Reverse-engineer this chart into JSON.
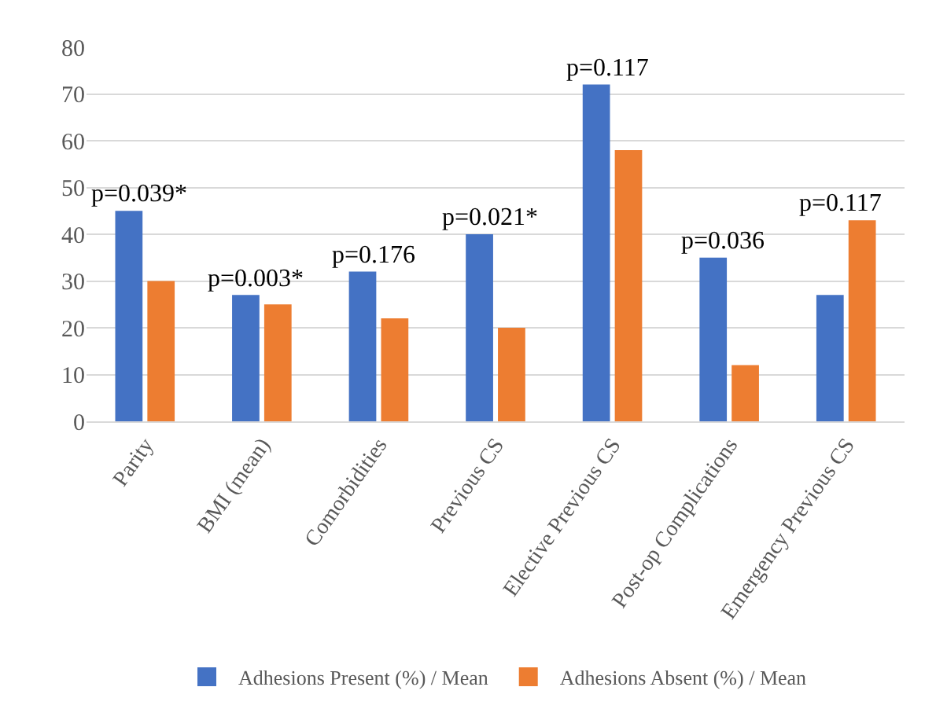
{
  "chart_data": {
    "type": "bar",
    "categories": [
      "Parity",
      "BMI (mean)",
      "Comorbidities",
      "Previous CS",
      "Elective Previous CS",
      "Post-op Complications",
      "Emergency Previous CS"
    ],
    "series": [
      {
        "name": "Adhesions Present (%) / Mean",
        "color": "#4472c4",
        "values": [
          45,
          27,
          32,
          40,
          72,
          35,
          27
        ]
      },
      {
        "name": "Adhesions Absent (%) / Mean",
        "color": "#ed7d31",
        "values": [
          30,
          25,
          22,
          20,
          58,
          12,
          43
        ]
      }
    ],
    "ylim": [
      0,
      80
    ],
    "yticks": [
      0,
      10,
      20,
      30,
      40,
      50,
      60,
      70,
      80
    ],
    "grid": "y",
    "legend": "bottom",
    "annotations": [
      {
        "text": "p=0.039*",
        "x": "Parity",
        "y": 45
      },
      {
        "text": "p=0.003*",
        "x": "BMI (mean)",
        "y": 27
      },
      {
        "text": "p=0.176",
        "x": "Comorbidities",
        "y": 32
      },
      {
        "text": "p=0.021*",
        "x": "Previous CS",
        "y": 40
      },
      {
        "text": "p=0.117",
        "x": "Elective Previous CS",
        "y": 72
      },
      {
        "text": "p=0.036",
        "x": "Post-op Complications",
        "y": 35
      },
      {
        "text": "p=0.117",
        "x": "Emergency Previous CS",
        "y": 43
      }
    ]
  }
}
